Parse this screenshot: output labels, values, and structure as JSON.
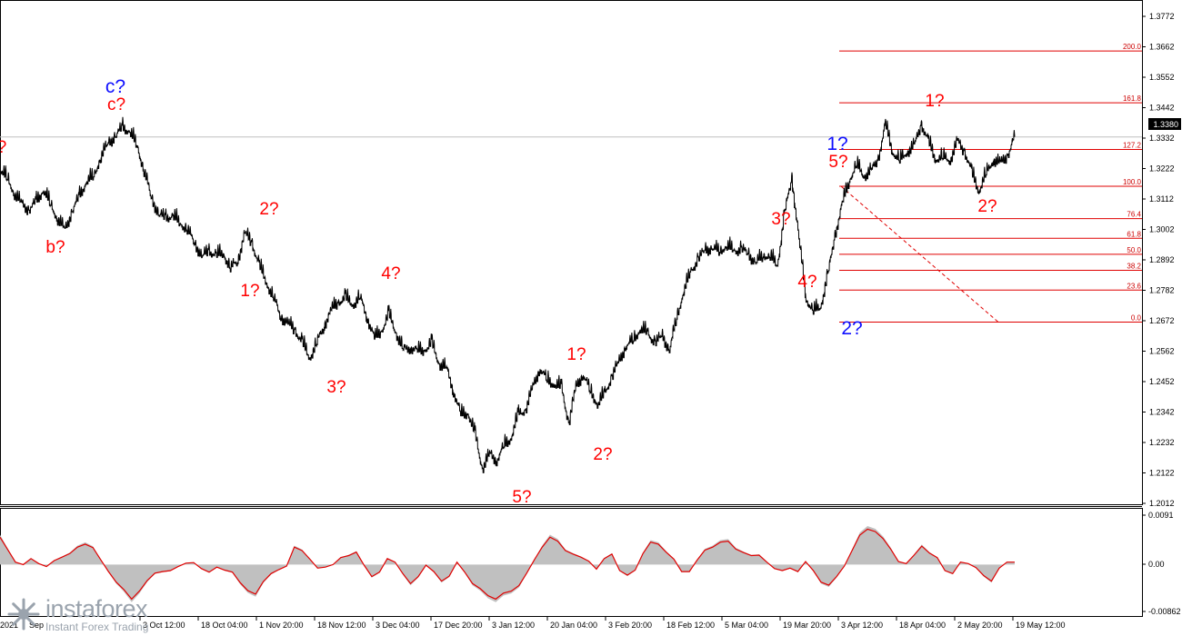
{
  "chart_data": [
    {
      "type": "line",
      "title": "",
      "ylim": [
        1.201,
        1.3832
      ],
      "price_ticks": [
        "1.3772",
        "1.3662",
        "1.3552",
        "1.3442",
        "1.3332",
        "1.3222",
        "1.3112",
        "1.3002",
        "1.2892",
        "1.2782",
        "1.2672",
        "1.2562",
        "1.2452",
        "1.2342",
        "1.2232",
        "1.2122",
        "1.2012"
      ],
      "current_price": "1.3380",
      "time_labels": [
        "3 Oct 12:00",
        "18 Oct 04:00",
        "1 Nov 20:00",
        "18 Nov 12:00",
        "3 Dec 04:00",
        "17 Dec 20:00",
        "3 Jan 12:00",
        "20 Jan 04:00",
        "3 Feb 20:00",
        "18 Feb 12:00",
        "5 Mar 04:00",
        "19 Mar 20:00",
        "3 Apr 12:00",
        "18 Apr 04:00",
        "2 May 20:00",
        "19 May 12:00"
      ],
      "time_labels_partial": [
        "2021",
        "Sep"
      ],
      "series": [
        {
          "values": [
            1.3257,
            1.322,
            1.3165,
            1.3125,
            1.3105,
            1.3135,
            1.318,
            1.3123,
            1.307,
            1.303,
            1.31,
            1.3155,
            1.3212,
            1.323,
            1.3305,
            1.3355,
            1.338,
            1.3414,
            1.3398,
            1.3345,
            1.325,
            1.315,
            1.3087,
            1.3075,
            1.3082,
            1.3054,
            1.3032,
            1.298,
            1.293,
            1.295,
            1.2936,
            1.294,
            1.2887,
            1.2912,
            1.302,
            1.2976,
            1.2898,
            1.283,
            1.2775,
            1.2703,
            1.268,
            1.2651,
            1.2606,
            1.2549,
            1.2606,
            1.267,
            1.273,
            1.276,
            1.2774,
            1.275,
            1.2776,
            1.27,
            1.2624,
            1.2653,
            1.2712,
            1.2644,
            1.2579,
            1.259,
            1.2575,
            1.2582,
            1.2601,
            1.2528,
            1.251,
            1.2425,
            1.2337,
            1.2344,
            1.2257,
            1.2136,
            1.2188,
            1.2167,
            1.2219,
            1.2252,
            1.2337,
            1.2356,
            1.2438,
            1.2512,
            1.2464,
            1.2453,
            1.2436,
            1.2304,
            1.244,
            1.2489,
            1.2423,
            1.2377,
            1.2414,
            1.2482,
            1.2535,
            1.2598,
            1.2617,
            1.266,
            1.2639,
            1.2609,
            1.2629,
            1.2581,
            1.27,
            1.2802,
            1.2874,
            1.2922,
            1.2954,
            1.2962,
            1.295,
            1.297,
            1.295,
            1.2958,
            1.2935,
            1.2908,
            1.2933,
            1.2931,
            1.2895,
            1.3094,
            1.322,
            1.2996,
            1.2768,
            1.2727,
            1.2741,
            1.286,
            1.3008,
            1.3128,
            1.3217,
            1.3275,
            1.3233,
            1.3247,
            1.3296,
            1.3425,
            1.3322,
            1.3289,
            1.3323,
            1.3342,
            1.3428,
            1.3357,
            1.3295,
            1.3301,
            1.3292,
            1.3358,
            1.3326,
            1.3242,
            1.3177,
            1.3239,
            1.3294,
            1.3277,
            1.3312,
            1.338
          ]
        }
      ]
    },
    {
      "type": "area",
      "title": "",
      "ylim": [
        -0.00862,
        0.0091
      ],
      "axis_ticks": [
        "0.0091",
        "0.00",
        "-0.00862"
      ],
      "series": [
        {
          "values": [
            0.0055,
            0.003,
            0.0005,
            0.0,
            0.0012,
            0.0002,
            -0.0004,
            0.0008,
            0.0015,
            0.0022,
            0.0035,
            0.0041,
            0.0034,
            0.001,
            -0.0014,
            -0.0035,
            -0.005,
            -0.0069,
            -0.0053,
            -0.0032,
            -0.0017,
            -0.0014,
            -0.0012,
            -0.0004,
            0.0003,
            0.0004,
            -0.0008,
            -0.0015,
            -0.0005,
            -0.0011,
            -0.0015,
            -0.0036,
            -0.0052,
            -0.0059,
            -0.0034,
            -0.0018,
            -0.001,
            -0.0003,
            0.0035,
            0.0028,
            0.0011,
            -0.0007,
            -0.0005,
            0.0,
            0.0014,
            0.0018,
            0.0025,
            -0.0001,
            -0.0024,
            -0.0015,
            0.0012,
            0.0005,
            -0.0018,
            -0.0038,
            -0.0024,
            -0.0001,
            -0.0014,
            -0.0033,
            -0.0023,
            0.0005,
            -0.0015,
            -0.0038,
            -0.0048,
            -0.0062,
            -0.0069,
            -0.0057,
            -0.0053,
            -0.0042,
            -0.0017,
            0.001,
            0.0035,
            0.0055,
            0.0047,
            0.0028,
            0.0021,
            0.0015,
            0.0007,
            -0.0009,
            0.0012,
            0.0021,
            -0.0012,
            -0.0021,
            -0.0011,
            0.0022,
            0.0045,
            0.0041,
            0.0025,
            0.0011,
            -0.0014,
            -0.0014,
            0.0009,
            0.0029,
            0.0035,
            0.0045,
            0.0047,
            0.0031,
            0.0024,
            0.0018,
            0.0019,
            0.0005,
            -0.0008,
            -0.0012,
            -0.0007,
            -0.0014,
            0.0006,
            -0.0012,
            -0.0035,
            -0.0041,
            -0.0024,
            -0.0003,
            0.0028,
            0.0059,
            0.0071,
            0.0066,
            0.0052,
            0.0031,
            0.0006,
            0.0002,
            0.0019,
            0.0037,
            0.0023,
            0.0014,
            -0.0012,
            -0.0018,
            0.0005,
            0.0002,
            -0.0006,
            -0.0022,
            -0.0033,
            -0.0007,
            0.0005,
            0.0005
          ]
        }
      ]
    }
  ],
  "fib_levels": [
    {
      "label": "200.0",
      "value": 1.3702
    },
    {
      "label": "161.8",
      "value": 1.3508
    },
    {
      "label": "127.2",
      "value": 1.3333
    },
    {
      "label": "100.0",
      "value": 1.3195
    },
    {
      "label": "76.4",
      "value": 1.3074
    },
    {
      "label": "61.8",
      "value": 1.3
    },
    {
      "label": "50.0",
      "value": 1.294
    },
    {
      "label": "38.2",
      "value": 1.288
    },
    {
      "label": "23.6",
      "value": 1.2806
    },
    {
      "label": "0.0",
      "value": 1.2686
    }
  ],
  "wave_labels": [
    {
      "text": "c?",
      "color": "blue"
    },
    {
      "text": "c?",
      "color": "red"
    },
    {
      "text": "?",
      "color": "red"
    },
    {
      "text": "b?",
      "color": "red"
    },
    {
      "text": "2?",
      "color": "red"
    },
    {
      "text": "1?",
      "color": "red"
    },
    {
      "text": "3?",
      "color": "red"
    },
    {
      "text": "4?",
      "color": "red"
    },
    {
      "text": "5?",
      "color": "red"
    },
    {
      "text": "1?",
      "color": "red"
    },
    {
      "text": "2?",
      "color": "red"
    },
    {
      "text": "3?",
      "color": "red"
    },
    {
      "text": "4?",
      "color": "red"
    },
    {
      "text": "1?",
      "color": "blue"
    },
    {
      "text": "5?",
      "color": "red"
    },
    {
      "text": "2?",
      "color": "blue"
    },
    {
      "text": "1?",
      "color": "red"
    },
    {
      "text": "2?",
      "color": "red"
    }
  ],
  "brand": {
    "name": "instaforex",
    "tagline": "Instant Forex Trading"
  },
  "colors": {
    "price": "#000000",
    "fib": "#e00000",
    "osc_fill": "#c0c0c0",
    "osc_line": "#e00000",
    "grid_line": "#c0c0c0"
  }
}
